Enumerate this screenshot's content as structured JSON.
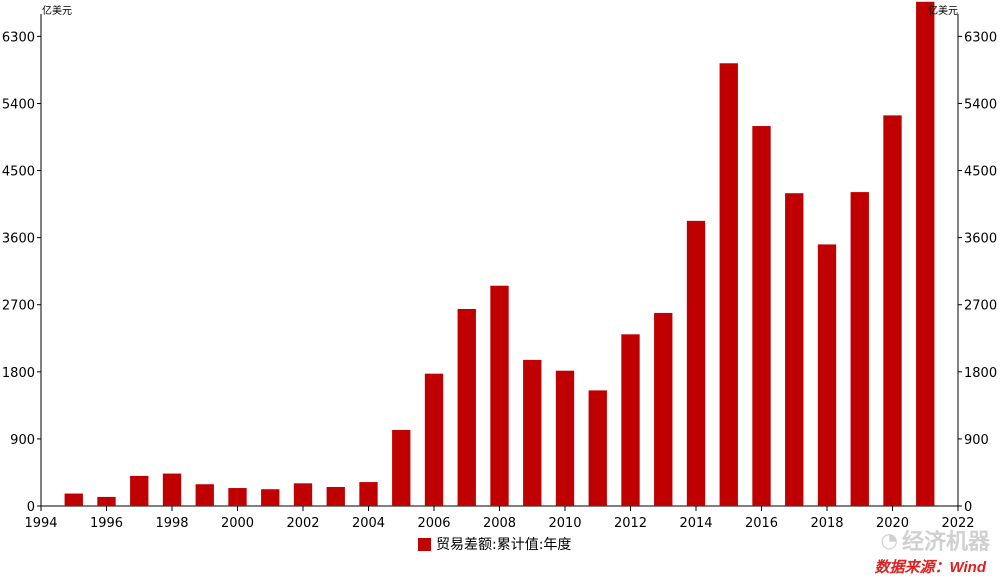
{
  "chart_data": {
    "type": "bar",
    "unit_left": "亿美元",
    "unit_right": "亿美元",
    "x": [
      1995,
      1996,
      1997,
      1998,
      1999,
      2000,
      2001,
      2002,
      2003,
      2004,
      2005,
      2006,
      2007,
      2008,
      2009,
      2010,
      2011,
      2012,
      2013,
      2014,
      2015,
      2016,
      2017,
      2018,
      2019,
      2020,
      2021
    ],
    "series": [
      {
        "name": "贸易差额:累计值:年度",
        "color": "#c00000",
        "values": [
          167,
          122,
          404,
          435,
          292,
          241,
          225,
          304,
          255,
          321,
          1020,
          1775,
          2643,
          2955,
          1960,
          1815,
          1551,
          2303,
          2590,
          3825,
          5939,
          5097,
          4196,
          3509,
          4211,
          5240,
          6764
        ]
      }
    ],
    "xlim": [
      1994,
      2022
    ],
    "xticks": [
      1994,
      1996,
      1998,
      2000,
      2002,
      2004,
      2006,
      2008,
      2010,
      2012,
      2014,
      2016,
      2018,
      2020,
      2022
    ],
    "ylim": [
      0,
      6600
    ],
    "yticks": [
      0,
      900,
      1800,
      2700,
      3600,
      4500,
      5400,
      6300
    ],
    "grid": false,
    "legend": "bottom-center"
  },
  "watermark_text": "经济机器",
  "watermark_icon": "wechat-icon",
  "source_text": "数据来源：Wind"
}
